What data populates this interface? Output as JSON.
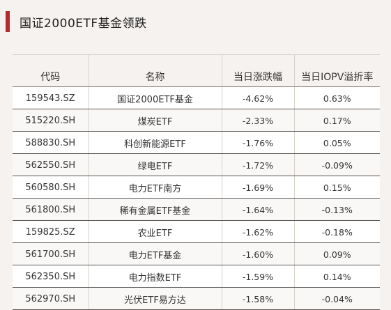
{
  "title": "国证2000ETF基金领跌",
  "accent_color": "#b5292f",
  "table": {
    "headers": [
      "代码",
      "名称",
      "当日涨跌幅",
      "当日IOPV溢折率"
    ],
    "rows": [
      {
        "code": "159543.SZ",
        "name": "国证2000ETF基金",
        "change": "-4.62%",
        "premium": "0.63%"
      },
      {
        "code": "515220.SH",
        "name": "煤炭ETF",
        "change": "-2.33%",
        "premium": "0.17%"
      },
      {
        "code": "588830.SH",
        "name": "科创新能源ETF",
        "change": "-1.76%",
        "premium": "0.05%"
      },
      {
        "code": "562550.SH",
        "name": "绿电ETF",
        "change": "-1.72%",
        "premium": "-0.09%"
      },
      {
        "code": "560580.SH",
        "name": "电力ETF南方",
        "change": "-1.69%",
        "premium": "0.15%"
      },
      {
        "code": "561800.SH",
        "name": "稀有金属ETF基金",
        "change": "-1.64%",
        "premium": "-0.13%"
      },
      {
        "code": "159825.SZ",
        "name": "农业ETF",
        "change": "-1.62%",
        "premium": "-0.18%"
      },
      {
        "code": "561700.SH",
        "name": "电力ETF基金",
        "change": "-1.60%",
        "premium": "0.09%"
      },
      {
        "code": "562350.SH",
        "name": "电力指数ETF",
        "change": "-1.59%",
        "premium": "0.14%"
      },
      {
        "code": "562970.SH",
        "name": "光伏ETF易方达",
        "change": "-1.58%",
        "premium": "-0.04%"
      }
    ]
  }
}
